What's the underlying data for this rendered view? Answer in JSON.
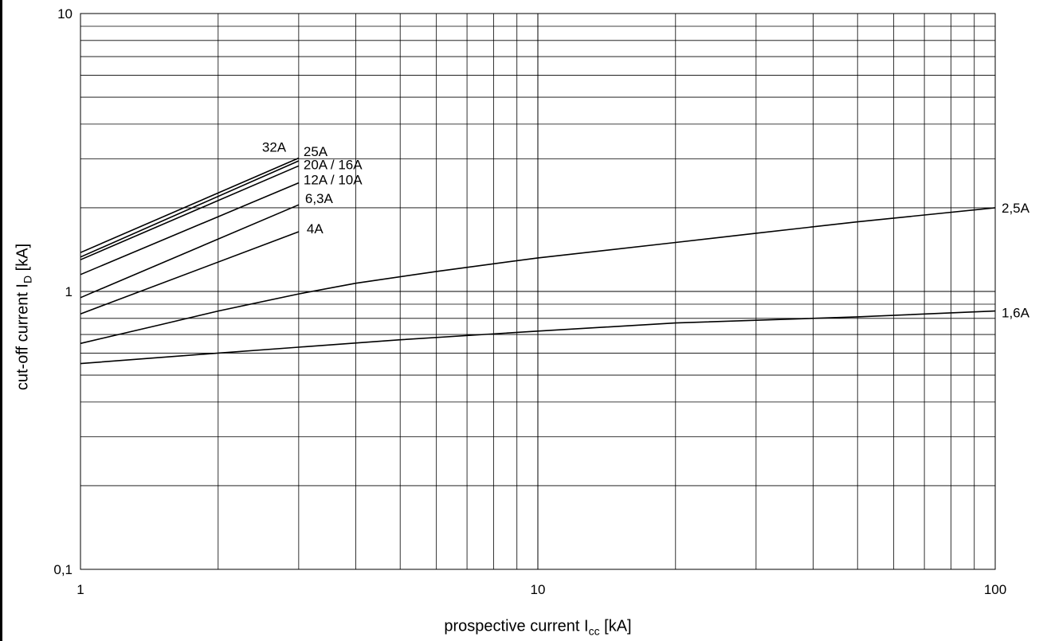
{
  "chart_data": {
    "type": "line",
    "x_scale": "log",
    "y_scale": "log",
    "xlim": [
      1,
      100
    ],
    "ylim": [
      0.1,
      10
    ],
    "grid": true,
    "xlabel": {
      "text": "prospective current I",
      "sub": "cc",
      "unit": " [kA]"
    },
    "ylabel": {
      "text": "cut-off current I",
      "sub": "D",
      "unit": " [kA]"
    },
    "x_ticks": [
      {
        "value": 1,
        "label": "1"
      },
      {
        "value": 10,
        "label": "10"
      },
      {
        "value": 100,
        "label": "100"
      }
    ],
    "y_ticks": [
      {
        "value": 0.1,
        "label": "0,1"
      },
      {
        "value": 1,
        "label": "1"
      },
      {
        "value": 10,
        "label": "10"
      }
    ],
    "series": [
      {
        "name": "32A",
        "points": [
          [
            1,
            1.38
          ],
          [
            3,
            3.02
          ]
        ]
      },
      {
        "name": "25A",
        "points": [
          [
            1,
            1.33
          ],
          [
            3,
            2.95
          ]
        ]
      },
      {
        "name": "20A / 16A",
        "points": [
          [
            1,
            1.3
          ],
          [
            3,
            2.83
          ]
        ]
      },
      {
        "name": "12A / 10A",
        "points": [
          [
            1,
            1.15
          ],
          [
            3,
            2.46
          ]
        ]
      },
      {
        "name": "6,3A",
        "points": [
          [
            1,
            0.95
          ],
          [
            3,
            2.05
          ]
        ]
      },
      {
        "name": "4A",
        "points": [
          [
            1,
            0.83
          ],
          [
            3,
            1.64
          ]
        ]
      },
      {
        "name": "2,5A",
        "points": [
          [
            1,
            0.65
          ],
          [
            1.5,
            0.76
          ],
          [
            2,
            0.85
          ],
          [
            3,
            0.98
          ],
          [
            4,
            1.07
          ],
          [
            6,
            1.18
          ],
          [
            10,
            1.32
          ],
          [
            20,
            1.5
          ],
          [
            30,
            1.62
          ],
          [
            50,
            1.78
          ],
          [
            100,
            2.0
          ]
        ]
      },
      {
        "name": "1,6A",
        "points": [
          [
            1,
            0.55
          ],
          [
            2,
            0.6
          ],
          [
            3,
            0.63
          ],
          [
            5,
            0.67
          ],
          [
            10,
            0.72
          ],
          [
            20,
            0.77
          ],
          [
            50,
            0.81
          ],
          [
            100,
            0.85
          ]
        ]
      }
    ]
  }
}
